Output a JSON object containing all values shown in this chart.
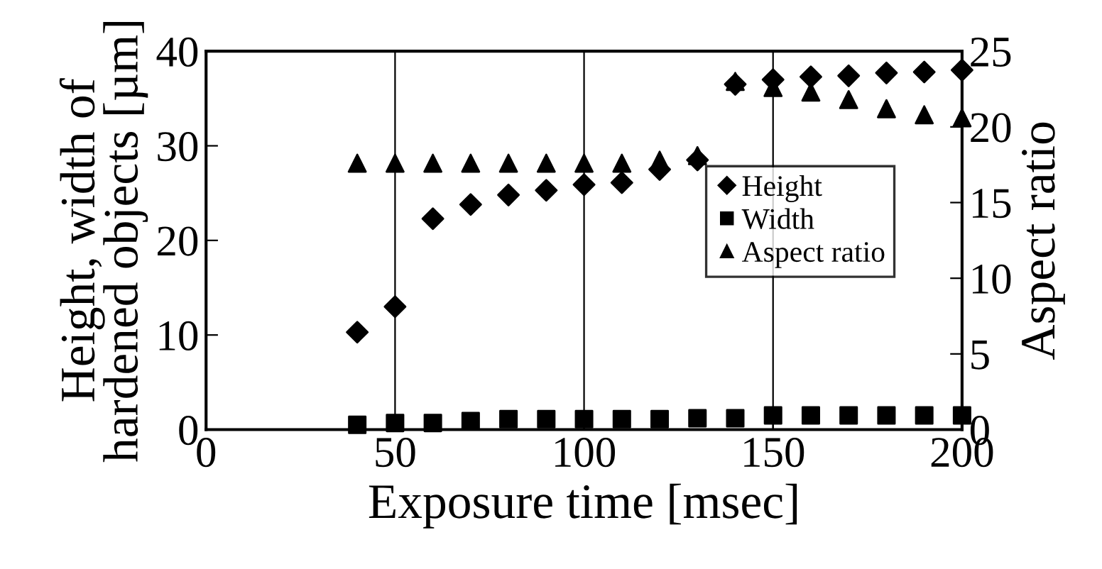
{
  "chart_data": {
    "type": "scatter",
    "xlabel": "Exposure time [msec]",
    "ylabel": "Height, width of\nhardened objects [µm]",
    "y2label": "Aspect ratio",
    "x": [
      40,
      50,
      60,
      70,
      80,
      90,
      100,
      110,
      120,
      130,
      140,
      150,
      160,
      170,
      180,
      190,
      200
    ],
    "series": [
      {
        "name": "Height",
        "color": "#000000",
        "marker": "diamond",
        "values": [
          10.3,
          13,
          22.3,
          23.8,
          24.8,
          25.3,
          25.9,
          26.1,
          27.5,
          28.5,
          36.5,
          37,
          37.3,
          37.4,
          37.7,
          37.8,
          38
        ]
      },
      {
        "name": "Width",
        "color": "#000000",
        "marker": "square",
        "values": [
          0.5,
          0.7,
          0.7,
          0.9,
          1.1,
          1.1,
          1.1,
          1.1,
          1.1,
          1.2,
          1.2,
          1.5,
          1.5,
          1.5,
          1.5,
          1.5,
          1.5
        ]
      },
      {
        "name": "Aspect ratio",
        "color": "#000000",
        "marker": "triangle",
        "axis": "y2",
        "values": [
          17.6,
          17.6,
          17.6,
          17.6,
          17.6,
          17.6,
          17.6,
          17.6,
          17.8,
          18.1,
          23,
          22.6,
          22.3,
          21.8,
          21.2,
          20.8,
          20.6
        ]
      }
    ],
    "xlim": [
      0,
      200
    ],
    "xticks": [
      0,
      50,
      100,
      150,
      200
    ],
    "ylim": [
      0,
      40
    ],
    "yticks": [
      0,
      10,
      20,
      30,
      40
    ],
    "y2lim": [
      0,
      25
    ],
    "y2ticks": [
      0,
      5,
      10,
      15,
      20,
      25
    ],
    "grid": "x",
    "legend": "center right"
  }
}
